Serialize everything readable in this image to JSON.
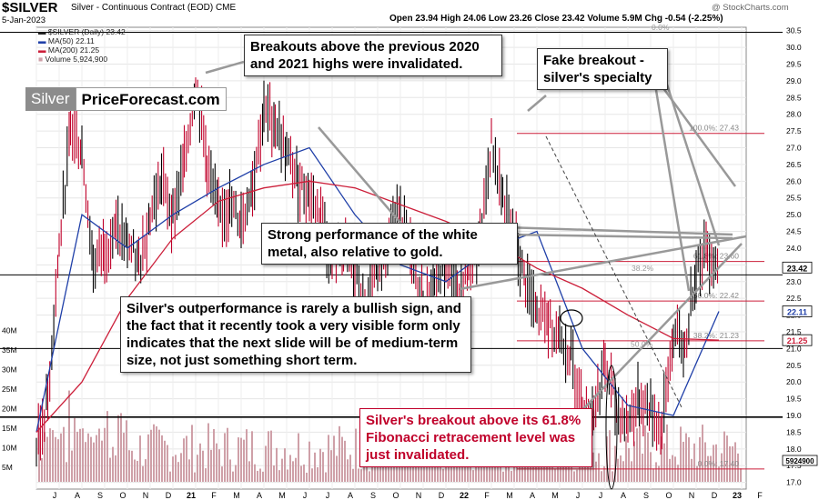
{
  "header": {
    "symbol": "$SILVER",
    "description": "Silver - Continuous Contract (EOD)",
    "exchange": "CME",
    "date": "5-Jan-2023",
    "stats": "Open 23.94  High 24.06  Low 23.26  Close 23.42  Volume 5.9M  Chg -0.54 (-2.25%)",
    "watermark": "@ StockCharts.com"
  },
  "legend": {
    "price": "$SILVER (Daily) 23.42",
    "ma50": "MA(50) 22.11",
    "ma200": "MA(200) 21.25",
    "volume": "Volume 5,924,900"
  },
  "logo": {
    "left": "Silver",
    "right": "PriceForecast.com"
  },
  "annotations": {
    "breakouts": "Breakouts above the previous 2020 and 2021 highs were invalidated.",
    "fake": "Fake breakout - silver's specialty",
    "strong": "Strong performance of the white metal, also relative to gold.",
    "outperformance": "Silver's outperformance is rarely a bullish sign, and the fact that it recently took a very visible form only indicates that the next slide will be of medium-term size, not just something short term.",
    "fib": "Silver's breakout above its 61.8% Fibonacci retracement level was just invalidated."
  },
  "colors": {
    "price": "#000000",
    "price_down": "#c0002a",
    "ma50": "#1f3fa8",
    "ma200": "#cc1f3a",
    "fib": "#cc1f3a",
    "annotation_red": "#c0002a",
    "volume": "#cfa0a8"
  },
  "price_tags": {
    "close": "23.42",
    "ma50": "22.11",
    "ma200": "21.25",
    "volume": "5924900"
  },
  "chart_data": {
    "type": "line",
    "title": "$SILVER",
    "ylabel": "",
    "ylim": [
      16.8,
      30.6
    ],
    "scale": "linear",
    "grid": true,
    "legend": "top-left",
    "x_ticks": [
      "J",
      "A",
      "S",
      "O",
      "N",
      "D",
      "21",
      "F",
      "M",
      "A",
      "M",
      "J",
      "J",
      "A",
      "S",
      "O",
      "N",
      "D",
      "22",
      "F",
      "M",
      "A",
      "M",
      "J",
      "J",
      "A",
      "S",
      "O",
      "N",
      "D",
      "23",
      "F"
    ],
    "y_ticks": [
      "17.0",
      "17.5",
      "18.0",
      "18.5",
      "19.0",
      "19.5",
      "20.0",
      "20.5",
      "21.0",
      "21.5",
      "22.0",
      "22.5",
      "23.0",
      "23.5",
      "24.0",
      "24.5",
      "25.0",
      "25.5",
      "26.0",
      "26.5",
      "27.0",
      "27.5",
      "28.0",
      "28.5",
      "29.0",
      "29.5",
      "30.0",
      "30.5"
    ],
    "volume_ticks": [
      "5M",
      "10M",
      "15M",
      "20M",
      "25M",
      "30M",
      "35M",
      "40M"
    ],
    "series": [
      {
        "name": "$SILVER (Daily)",
        "x": [
          "2020-07",
          "2020-07",
          "2020-08",
          "2020-08",
          "2020-09",
          "2020-09",
          "2020-10",
          "2020-10",
          "2020-11",
          "2020-11",
          "2020-12",
          "2020-12",
          "2021-01",
          "2021-01",
          "2021-02",
          "2021-02",
          "2021-03",
          "2021-03",
          "2021-04",
          "2021-04",
          "2021-05",
          "2021-05",
          "2021-06",
          "2021-06",
          "2021-07",
          "2021-07",
          "2021-08",
          "2021-08",
          "2021-09",
          "2021-09",
          "2021-10",
          "2021-10",
          "2021-11",
          "2021-11",
          "2021-12",
          "2021-12",
          "2022-01",
          "2022-01",
          "2022-02",
          "2022-02",
          "2022-03",
          "2022-03",
          "2022-04",
          "2022-04",
          "2022-05",
          "2022-05",
          "2022-06",
          "2022-06",
          "2022-07",
          "2022-07",
          "2022-08",
          "2022-08",
          "2022-09",
          "2022-09",
          "2022-10",
          "2022-10",
          "2022-11",
          "2022-11",
          "2022-12",
          "2022-12",
          "2023-01"
        ],
        "values": [
          18.0,
          19.5,
          24.0,
          27.5,
          27.0,
          23.5,
          24.0,
          24.5,
          24.2,
          23.5,
          25.0,
          26.0,
          25.0,
          26.5,
          29.0,
          26.5,
          25.0,
          25.3,
          24.8,
          26.0,
          28.0,
          27.8,
          26.8,
          26.0,
          25.6,
          25.0,
          23.6,
          24.0,
          23.2,
          22.0,
          23.5,
          24.4,
          25.2,
          23.5,
          22.4,
          23.0,
          23.5,
          22.6,
          23.3,
          24.0,
          27.2,
          25.5,
          24.2,
          23.0,
          22.0,
          21.8,
          21.5,
          20.8,
          19.0,
          19.2,
          20.5,
          19.2,
          18.8,
          19.5,
          19.2,
          18.5,
          21.5,
          21.0,
          23.5,
          24.0,
          23.42
        ]
      },
      {
        "name": "MA(50)",
        "x": [
          "2020-07",
          "2020-09",
          "2020-11",
          "2021-01",
          "2021-03",
          "2021-05",
          "2021-07",
          "2021-09",
          "2021-11",
          "2022-01",
          "2022-03",
          "2022-05",
          "2022-07",
          "2022-09",
          "2022-11",
          "2023-01"
        ],
        "values": [
          18.5,
          25.0,
          24.0,
          25.0,
          25.8,
          26.5,
          27.0,
          25.0,
          23.5,
          23.0,
          24.0,
          24.5,
          21.0,
          19.3,
          19.0,
          22.11
        ]
      },
      {
        "name": "MA(200)",
        "x": [
          "2020-07",
          "2020-09",
          "2020-11",
          "2021-01",
          "2021-03",
          "2021-05",
          "2021-07",
          "2021-09",
          "2021-11",
          "2022-01",
          "2022-03",
          "2022-05",
          "2022-07",
          "2022-09",
          "2022-11",
          "2023-01"
        ],
        "values": [
          18.5,
          20.0,
          22.5,
          24.3,
          25.4,
          25.8,
          26.0,
          25.8,
          25.3,
          24.8,
          24.2,
          23.4,
          22.8,
          22.0,
          21.3,
          21.25
        ]
      }
    ],
    "fib_levels": [
      {
        "label": "100.0%: 27.43",
        "value": 27.43
      },
      {
        "label": "61.8%: 23.60",
        "value": 23.6
      },
      {
        "label": "50.0%: 22.42",
        "value": 22.42
      },
      {
        "label": "38.2%: 21.23",
        "value": 21.23
      },
      {
        "label": "0.0%: 17.40",
        "value": 17.4
      }
    ],
    "fib_extra_labels": [
      "0.0%",
      "38.2%",
      "50.0%"
    ],
    "horizontal_lines": [
      30.45,
      23.2,
      21.0,
      18.95
    ],
    "volume": {
      "name": "Volume",
      "last": 5924900
    }
  }
}
